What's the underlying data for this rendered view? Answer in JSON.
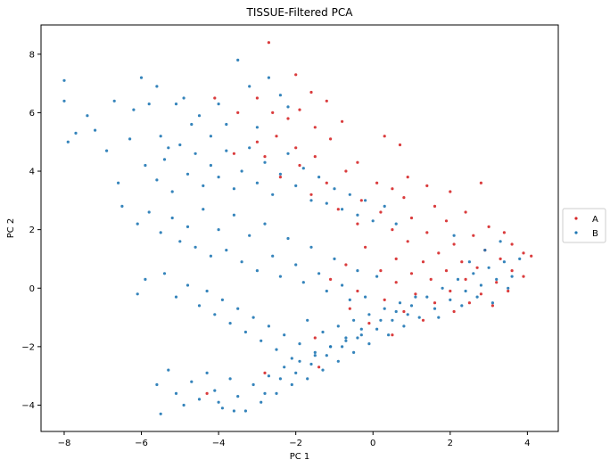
{
  "chart_data": {
    "type": "scatter",
    "title": "TISSUE-Filtered PCA",
    "xlabel": "PC 1",
    "ylabel": "PC 2",
    "xlim": [
      -8.6,
      4.8
    ],
    "ylim": [
      -4.9,
      9.0
    ],
    "x_ticks": [
      -8,
      -6,
      -4,
      -2,
      0,
      2,
      4
    ],
    "y_ticks": [
      -4,
      -2,
      0,
      2,
      4,
      6,
      8
    ],
    "grid": false,
    "legend_position": "right",
    "series": [
      {
        "name": "A",
        "color": "#d62728",
        "points": [
          [
            -2.7,
            8.4
          ],
          [
            -2.0,
            7.3
          ],
          [
            -1.6,
            6.7
          ],
          [
            -4.1,
            6.5
          ],
          [
            -3.0,
            6.5
          ],
          [
            -1.2,
            6.4
          ],
          [
            -2.6,
            6.0
          ],
          [
            -1.9,
            6.1
          ],
          [
            -3.5,
            6.0
          ],
          [
            -2.2,
            5.8
          ],
          [
            -0.8,
            5.7
          ],
          [
            -1.5,
            5.5
          ],
          [
            0.3,
            5.2
          ],
          [
            -2.5,
            5.2
          ],
          [
            -3.0,
            5.0
          ],
          [
            -1.1,
            5.1
          ],
          [
            -2.0,
            4.8
          ],
          [
            -3.6,
            4.6
          ],
          [
            -0.4,
            4.3
          ],
          [
            0.7,
            4.9
          ],
          [
            -1.5,
            4.5
          ],
          [
            -2.8,
            4.5
          ],
          [
            0.9,
            3.8
          ],
          [
            -0.7,
            4.0
          ],
          [
            -1.9,
            4.2
          ],
          [
            0.1,
            3.6
          ],
          [
            -1.2,
            3.6
          ],
          [
            -2.4,
            3.8
          ],
          [
            0.5,
            3.4
          ],
          [
            1.4,
            3.5
          ],
          [
            -0.3,
            3.0
          ],
          [
            2.0,
            3.3
          ],
          [
            2.8,
            3.6
          ],
          [
            0.8,
            3.1
          ],
          [
            -1.6,
            3.2
          ],
          [
            1.6,
            2.8
          ],
          [
            0.2,
            2.6
          ],
          [
            -0.9,
            2.7
          ],
          [
            2.4,
            2.6
          ],
          [
            1.0,
            2.4
          ],
          [
            3.0,
            2.1
          ],
          [
            1.9,
            2.3
          ],
          [
            0.5,
            2.0
          ],
          [
            -0.4,
            2.2
          ],
          [
            2.6,
            1.8
          ],
          [
            1.4,
            1.9
          ],
          [
            3.4,
            1.9
          ],
          [
            0.9,
            1.6
          ],
          [
            2.1,
            1.5
          ],
          [
            3.6,
            1.5
          ],
          [
            -0.2,
            1.4
          ],
          [
            1.7,
            1.2
          ],
          [
            2.9,
            1.3
          ],
          [
            3.9,
            1.2
          ],
          [
            0.6,
            1.0
          ],
          [
            1.3,
            0.9
          ],
          [
            2.3,
            0.9
          ],
          [
            3.3,
            1.0
          ],
          [
            4.1,
            1.1
          ],
          [
            -0.7,
            0.8
          ],
          [
            0.2,
            0.6
          ],
          [
            1.0,
            0.5
          ],
          [
            1.9,
            0.6
          ],
          [
            2.7,
            0.7
          ],
          [
            3.6,
            0.6
          ],
          [
            -1.1,
            0.3
          ],
          [
            0.6,
            0.2
          ],
          [
            1.5,
            0.3
          ],
          [
            2.4,
            0.3
          ],
          [
            3.2,
            0.2
          ],
          [
            3.9,
            0.4
          ],
          [
            -0.4,
            -0.1
          ],
          [
            1.1,
            -0.2
          ],
          [
            2.0,
            -0.1
          ],
          [
            2.8,
            -0.2
          ],
          [
            3.5,
            -0.1
          ],
          [
            0.3,
            -0.4
          ],
          [
            1.6,
            -0.5
          ],
          [
            2.5,
            -0.5
          ],
          [
            3.1,
            -0.6
          ],
          [
            -0.6,
            -0.7
          ],
          [
            0.8,
            -0.8
          ],
          [
            2.1,
            -0.8
          ],
          [
            1.3,
            -1.1
          ],
          [
            -0.1,
            -1.2
          ],
          [
            0.5,
            -1.6
          ],
          [
            -1.5,
            -1.7
          ],
          [
            -2.8,
            -2.9
          ],
          [
            -4.3,
            -3.6
          ],
          [
            -1.4,
            -2.7
          ]
        ]
      },
      {
        "name": "B",
        "color": "#1f77b4",
        "points": [
          [
            -8.0,
            7.1
          ],
          [
            -8.0,
            6.4
          ],
          [
            -7.9,
            5.0
          ],
          [
            -7.7,
            5.3
          ],
          [
            -7.4,
            5.9
          ],
          [
            -7.2,
            5.4
          ],
          [
            -6.9,
            4.7
          ],
          [
            -6.7,
            6.4
          ],
          [
            -6.6,
            3.6
          ],
          [
            -6.3,
            5.1
          ],
          [
            -6.2,
            6.1
          ],
          [
            -6.0,
            7.2
          ],
          [
            -5.8,
            6.3
          ],
          [
            -5.6,
            6.9
          ],
          [
            -5.5,
            5.2
          ],
          [
            -5.3,
            4.8
          ],
          [
            -5.1,
            6.3
          ],
          [
            -4.9,
            6.5
          ],
          [
            -4.7,
            5.6
          ],
          [
            -4.5,
            5.9
          ],
          [
            -4.2,
            5.2
          ],
          [
            -4.0,
            6.3
          ],
          [
            -3.8,
            5.6
          ],
          [
            -3.5,
            7.8
          ],
          [
            -3.2,
            6.9
          ],
          [
            -3.0,
            5.5
          ],
          [
            -2.7,
            7.2
          ],
          [
            -2.4,
            6.6
          ],
          [
            -2.2,
            6.2
          ],
          [
            -5.9,
            4.2
          ],
          [
            -5.6,
            3.7
          ],
          [
            -5.4,
            4.4
          ],
          [
            -5.2,
            3.3
          ],
          [
            -5.0,
            4.9
          ],
          [
            -4.8,
            3.9
          ],
          [
            -4.6,
            4.6
          ],
          [
            -4.4,
            3.5
          ],
          [
            -4.2,
            4.2
          ],
          [
            -4.0,
            3.8
          ],
          [
            -3.8,
            4.7
          ],
          [
            -3.6,
            3.4
          ],
          [
            -3.4,
            4.0
          ],
          [
            -3.2,
            4.8
          ],
          [
            -3.0,
            3.6
          ],
          [
            -2.8,
            4.3
          ],
          [
            -2.6,
            3.2
          ],
          [
            -2.4,
            3.9
          ],
          [
            -2.2,
            4.6
          ],
          [
            -2.0,
            3.5
          ],
          [
            -1.8,
            4.1
          ],
          [
            -1.6,
            3.0
          ],
          [
            -1.4,
            3.8
          ],
          [
            -1.2,
            2.9
          ],
          [
            -1.0,
            3.4
          ],
          [
            -0.8,
            2.7
          ],
          [
            -0.6,
            3.2
          ],
          [
            -0.4,
            2.5
          ],
          [
            -0.2,
            3.0
          ],
          [
            0.0,
            2.3
          ],
          [
            0.3,
            2.8
          ],
          [
            0.6,
            2.2
          ],
          [
            -6.5,
            2.8
          ],
          [
            -6.1,
            2.2
          ],
          [
            -5.8,
            2.6
          ],
          [
            -5.5,
            1.9
          ],
          [
            -5.2,
            2.4
          ],
          [
            -5.0,
            1.6
          ],
          [
            -4.8,
            2.1
          ],
          [
            -4.6,
            1.4
          ],
          [
            -4.4,
            2.7
          ],
          [
            -4.2,
            1.1
          ],
          [
            -4.0,
            2.0
          ],
          [
            -3.8,
            1.3
          ],
          [
            -3.6,
            2.5
          ],
          [
            -3.4,
            0.9
          ],
          [
            -3.2,
            1.8
          ],
          [
            -3.0,
            0.6
          ],
          [
            -2.8,
            2.2
          ],
          [
            -2.6,
            1.1
          ],
          [
            -2.4,
            0.4
          ],
          [
            -2.2,
            1.7
          ],
          [
            -2.0,
            0.8
          ],
          [
            -1.8,
            0.2
          ],
          [
            -1.6,
            1.4
          ],
          [
            -1.4,
            0.5
          ],
          [
            -1.2,
            -0.1
          ],
          [
            -1.0,
            1.0
          ],
          [
            -0.8,
            0.1
          ],
          [
            -0.6,
            -0.4
          ],
          [
            -0.4,
            0.6
          ],
          [
            -0.2,
            -0.3
          ],
          [
            0.1,
            0.4
          ],
          [
            -6.1,
            -0.2
          ],
          [
            -5.9,
            0.3
          ],
          [
            -5.4,
            0.5
          ],
          [
            -5.1,
            -0.3
          ],
          [
            -4.8,
            0.1
          ],
          [
            -4.5,
            -0.6
          ],
          [
            -4.3,
            -0.1
          ],
          [
            -4.1,
            -0.9
          ],
          [
            -3.9,
            -0.4
          ],
          [
            -3.7,
            -1.2
          ],
          [
            -3.5,
            -0.7
          ],
          [
            -3.3,
            -1.5
          ],
          [
            -3.1,
            -1.0
          ],
          [
            -2.9,
            -1.8
          ],
          [
            -2.7,
            -1.3
          ],
          [
            -2.5,
            -2.1
          ],
          [
            -2.3,
            -1.6
          ],
          [
            -2.1,
            -2.4
          ],
          [
            -1.9,
            -1.9
          ],
          [
            -1.7,
            -1.1
          ],
          [
            -1.5,
            -2.3
          ],
          [
            -1.3,
            -1.5
          ],
          [
            -1.1,
            -2.0
          ],
          [
            -0.9,
            -1.3
          ],
          [
            -0.7,
            -1.8
          ],
          [
            -0.5,
            -1.1
          ],
          [
            -0.3,
            -1.6
          ],
          [
            -0.1,
            -0.9
          ],
          [
            0.1,
            -1.4
          ],
          [
            0.3,
            -0.7
          ],
          [
            0.5,
            -1.1
          ],
          [
            0.7,
            -0.5
          ],
          [
            0.9,
            -0.9
          ],
          [
            1.1,
            -0.3
          ],
          [
            -5.6,
            -3.3
          ],
          [
            -5.5,
            -4.3
          ],
          [
            -5.3,
            -2.8
          ],
          [
            -5.1,
            -3.6
          ],
          [
            -4.9,
            -4.0
          ],
          [
            -4.7,
            -3.2
          ],
          [
            -4.5,
            -3.8
          ],
          [
            -4.3,
            -2.9
          ],
          [
            -4.1,
            -3.5
          ],
          [
            -3.9,
            -4.1
          ],
          [
            -3.7,
            -3.1
          ],
          [
            -3.5,
            -3.7
          ],
          [
            -3.3,
            -4.2
          ],
          [
            -3.1,
            -3.3
          ],
          [
            -2.9,
            -3.9
          ],
          [
            -2.7,
            -3.0
          ],
          [
            -2.5,
            -3.6
          ],
          [
            -2.3,
            -2.7
          ],
          [
            -2.1,
            -3.3
          ],
          [
            -1.9,
            -2.5
          ],
          [
            -1.7,
            -3.1
          ],
          [
            -1.5,
            -2.2
          ],
          [
            -1.3,
            -2.8
          ],
          [
            -1.1,
            -2.0
          ],
          [
            -0.9,
            -2.5
          ],
          [
            -0.7,
            -1.7
          ],
          [
            -0.5,
            -2.2
          ],
          [
            -0.3,
            -1.4
          ],
          [
            -0.1,
            -1.9
          ],
          [
            0.2,
            -1.1
          ],
          [
            0.4,
            -1.6
          ],
          [
            0.6,
            -0.8
          ],
          [
            0.8,
            -1.3
          ],
          [
            1.0,
            -0.6
          ],
          [
            1.2,
            -1.0
          ],
          [
            1.4,
            -0.3
          ],
          [
            1.6,
            -0.7
          ],
          [
            1.8,
            0.0
          ],
          [
            2.0,
            -0.4
          ],
          [
            2.2,
            0.3
          ],
          [
            2.4,
            -0.1
          ],
          [
            2.6,
            0.5
          ],
          [
            2.8,
            0.1
          ],
          [
            3.0,
            0.7
          ],
          [
            3.2,
            0.3
          ],
          [
            3.4,
            0.9
          ],
          [
            3.6,
            0.4
          ],
          [
            3.8,
            1.0
          ],
          [
            2.5,
            0.9
          ],
          [
            2.9,
            1.3
          ],
          [
            3.3,
            1.6
          ],
          [
            2.1,
            1.8
          ],
          [
            1.7,
            -1.0
          ],
          [
            2.3,
            -0.6
          ],
          [
            2.7,
            -0.3
          ],
          [
            3.1,
            -0.5
          ],
          [
            3.5,
            0.0
          ],
          [
            -4.0,
            -3.9
          ],
          [
            -3.6,
            -4.2
          ],
          [
            -2.8,
            -3.6
          ],
          [
            -2.4,
            -3.1
          ],
          [
            -2.0,
            -2.9
          ],
          [
            -1.6,
            -2.6
          ],
          [
            -1.2,
            -2.3
          ],
          [
            -0.8,
            -2.0
          ],
          [
            -0.4,
            -1.7
          ]
        ]
      }
    ]
  }
}
